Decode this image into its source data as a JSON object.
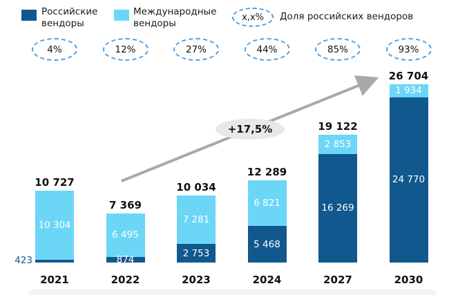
{
  "colors": {
    "russian": "#10588e",
    "international": "#6cd6f7",
    "dash_ellipse": "#4aa0e8",
    "arrow": "#a9a9a9",
    "growth_bg": "#e8e8e8",
    "footer_band": "#f4f4f4"
  },
  "legend": {
    "russian_label": "Российские вендоры",
    "international_label": "Международные вендоры",
    "share_symbol": "x,x%",
    "share_label": "Доля российских вендоров"
  },
  "chart_data": {
    "type": "bar",
    "stacked": true,
    "categories": [
      "2021",
      "2022",
      "2023",
      "2024",
      "2027",
      "2030"
    ],
    "series": [
      {
        "name": "Российские вендоры",
        "values": [
          423,
          874,
          2753,
          5468,
          16269,
          24770
        ]
      },
      {
        "name": "Международные вендоры",
        "values": [
          10304,
          6495,
          7281,
          6821,
          2853,
          1934
        ]
      }
    ],
    "totals": [
      10727,
      7369,
      10034,
      12289,
      19122,
      26704
    ],
    "russian_share_pct": [
      "4%",
      "12%",
      "27%",
      "44%",
      "85%",
      "93%"
    ],
    "growth_label": "+17,5%",
    "ylim": [
      0,
      27000
    ],
    "grid": false,
    "legend_position": "top"
  }
}
